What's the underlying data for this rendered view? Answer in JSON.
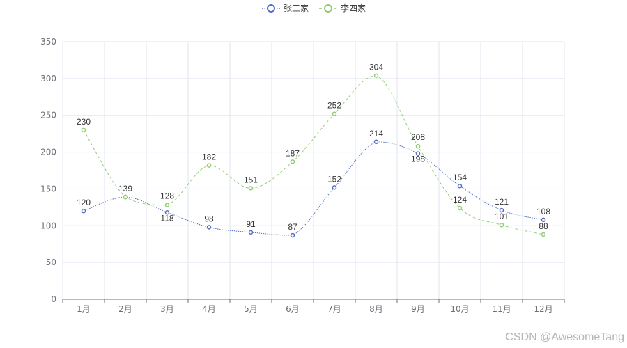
{
  "chart_data": {
    "type": "line",
    "categories": [
      "1月",
      "2月",
      "3月",
      "4月",
      "5月",
      "6月",
      "7月",
      "8月",
      "9月",
      "10月",
      "11月",
      "12月"
    ],
    "series": [
      {
        "name": "张三家",
        "values": [
          120,
          139,
          118,
          98,
          91,
          87,
          152,
          214,
          198,
          154,
          121,
          108
        ],
        "color": "#5470c6",
        "line_style": "dotted"
      },
      {
        "name": "李四家",
        "values": [
          230,
          139,
          128,
          182,
          151,
          187,
          252,
          304,
          208,
          124,
          101,
          88
        ],
        "color": "#91cc75",
        "line_style": "dashed"
      }
    ],
    "ylim": [
      0,
      350
    ],
    "yticks": [
      0,
      50,
      100,
      150,
      200,
      250,
      300,
      350
    ],
    "smooth": true,
    "grid": true,
    "legend_position": "top-center"
  },
  "watermark": "CSDN @AwesomeTang"
}
